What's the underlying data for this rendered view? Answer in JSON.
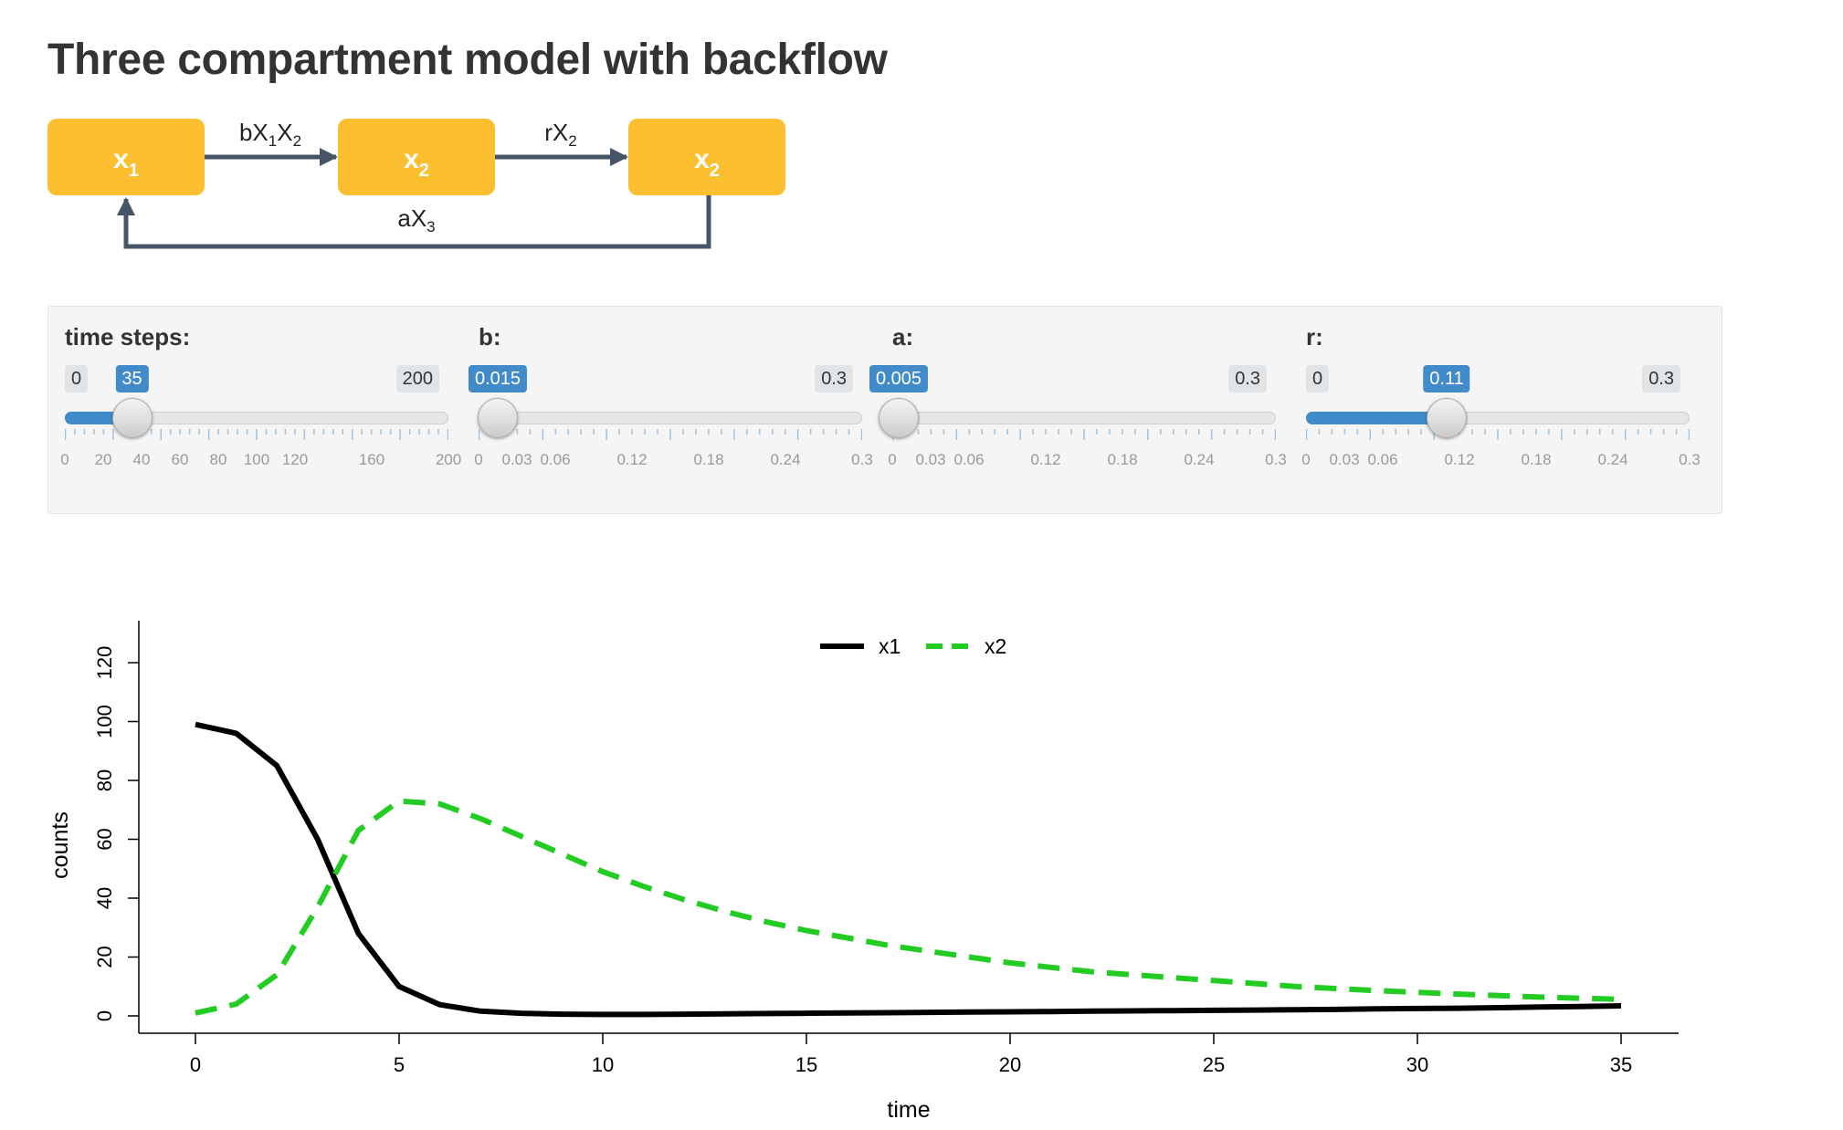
{
  "page": {
    "title": "Three compartment model with backflow"
  },
  "diagram": {
    "box_color": "#fbbf2f",
    "arrow_color": "#465467",
    "boxes": [
      {
        "label": "x",
        "sub": "1"
      },
      {
        "label": "x",
        "sub": "2"
      },
      {
        "label": "x",
        "sub": "2"
      }
    ],
    "edges": {
      "e12": {
        "pre": "bX",
        "sub1": "1",
        "mid": "X",
        "sub2": "2"
      },
      "e23": {
        "pre": "rX",
        "sub1": "2"
      },
      "e31": {
        "pre": "aX",
        "sub1": "3"
      }
    }
  },
  "sliders": [
    {
      "label": "time steps:",
      "min_label": "0",
      "max_label": "200",
      "value_label": "35",
      "value": 35,
      "min": 0,
      "max": 200,
      "tick_labels": [
        "0",
        "20",
        "40",
        "60",
        "80",
        "100",
        "120",
        "160",
        "200"
      ],
      "tick_values": [
        0,
        20,
        40,
        60,
        80,
        100,
        120,
        160,
        200
      ],
      "minor_ticks": 41
    },
    {
      "label": "b:",
      "min_label": "",
      "max_label": "0.3",
      "value_label": "0.015",
      "value": 0.015,
      "min": 0,
      "max": 0.3,
      "tick_labels": [
        "0",
        "0.03",
        "0.06",
        "0.12",
        "0.18",
        "0.24",
        "0.3"
      ],
      "tick_values": [
        0,
        0.03,
        0.06,
        0.12,
        0.18,
        0.24,
        0.3
      ],
      "minor_ticks": 31
    },
    {
      "label": "a:",
      "min_label": "",
      "max_label": "0.3",
      "value_label": "0.005",
      "value": 0.005,
      "min": 0,
      "max": 0.3,
      "tick_labels": [
        "0",
        "0.03",
        "0.06",
        "0.12",
        "0.18",
        "0.24",
        "0.3"
      ],
      "tick_values": [
        0,
        0.03,
        0.06,
        0.12,
        0.18,
        0.24,
        0.3
      ],
      "minor_ticks": 31
    },
    {
      "label": "r:",
      "min_label": "0",
      "max_label": "0.3",
      "value_label": "0.11",
      "value": 0.11,
      "min": 0,
      "max": 0.3,
      "tick_labels": [
        "0",
        "0.03",
        "0.06",
        "0.12",
        "0.18",
        "0.24",
        "0.3"
      ],
      "tick_values": [
        0,
        0.03,
        0.06,
        0.12,
        0.18,
        0.24,
        0.3
      ],
      "minor_ticks": 31
    }
  ],
  "chart_data": {
    "type": "line",
    "title": "",
    "xlabel": "time",
    "ylabel": "counts",
    "xlim": [
      0,
      35
    ],
    "ylim": [
      0,
      120
    ],
    "xticks": [
      0,
      5,
      10,
      15,
      20,
      25,
      30,
      35
    ],
    "yticks": [
      0,
      20,
      40,
      60,
      80,
      100,
      120
    ],
    "legend_position": "top-center",
    "x": [
      0,
      1,
      2,
      3,
      4,
      5,
      6,
      7,
      8,
      9,
      10,
      11,
      12,
      13,
      14,
      15,
      16,
      17,
      18,
      19,
      20,
      21,
      22,
      23,
      24,
      25,
      26,
      27,
      28,
      29,
      30,
      31,
      32,
      33,
      34,
      35
    ],
    "series": [
      {
        "name": "x1",
        "color": "#000000",
        "dash": "solid",
        "values": [
          99,
          96,
          85,
          60,
          28,
          10,
          3.8,
          1.6,
          0.9,
          0.6,
          0.5,
          0.5,
          0.6,
          0.7,
          0.8,
          0.9,
          1.0,
          1.1,
          1.2,
          1.3,
          1.4,
          1.5,
          1.6,
          1.7,
          1.8,
          1.9,
          2.0,
          2.1,
          2.2,
          2.4,
          2.5,
          2.6,
          2.8,
          3.0,
          3.2,
          3.4
        ]
      },
      {
        "name": "x2",
        "color": "#22cc22",
        "dash": "dashed",
        "values": [
          1,
          4,
          14,
          37,
          63,
          73,
          72,
          67,
          61,
          55,
          49,
          44,
          39.5,
          35.5,
          32,
          29,
          26.5,
          24,
          22,
          20,
          18,
          16.5,
          15,
          14,
          13,
          12,
          11,
          10,
          9.3,
          8.6,
          8,
          7.4,
          6.9,
          6.4,
          6,
          5.6
        ]
      }
    ]
  }
}
